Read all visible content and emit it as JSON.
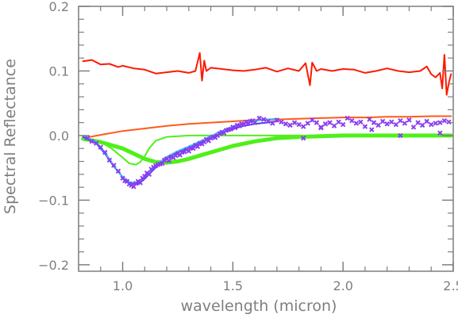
{
  "chart_data": {
    "type": "line",
    "title": "",
    "xlabel": "wavelength (micron)",
    "ylabel": "Spectral Reflectance",
    "xlim": [
      0.8,
      2.5
    ],
    "ylim": [
      -0.21,
      0.2
    ],
    "x_ticks": [
      1.0,
      1.5,
      2.0,
      2.5
    ],
    "x_tick_labels": [
      "1.0",
      "1.5",
      "2.0",
      "2.5"
    ],
    "y_ticks": [
      0.2,
      0.1,
      0.0,
      -0.1,
      -0.2
    ],
    "y_tick_labels": [
      "0.2",
      "0.1",
      "0.0",
      "−0.1",
      "−0.2"
    ],
    "grid": false,
    "legend": "none",
    "colors": {
      "axes": "#7f7f7f",
      "red": "#ff1a00",
      "orange": "#ff5a1a",
      "green": "#4ff01a",
      "cyan": "#36c0f0",
      "blue": "#4a3cf2",
      "purple": "#8a3df0"
    },
    "series": [
      {
        "style": "line",
        "color": "#ff1a00",
        "width": 2,
        "x": [
          0.82,
          0.86,
          0.9,
          0.94,
          0.98,
          1.0,
          1.05,
          1.1,
          1.15,
          1.2,
          1.25,
          1.3,
          1.33,
          1.35,
          1.36,
          1.37,
          1.38,
          1.4,
          1.45,
          1.5,
          1.55,
          1.6,
          1.65,
          1.7,
          1.75,
          1.8,
          1.83,
          1.85,
          1.86,
          1.88,
          1.9,
          1.95,
          2.0,
          2.05,
          2.1,
          2.15,
          2.2,
          2.25,
          2.3,
          2.35,
          2.38,
          2.4,
          2.42,
          2.44,
          2.45,
          2.46,
          2.47,
          2.48,
          2.49
        ],
        "y": [
          0.115,
          0.117,
          0.11,
          0.111,
          0.106,
          0.108,
          0.104,
          0.102,
          0.096,
          0.098,
          0.1,
          0.097,
          0.1,
          0.128,
          0.085,
          0.116,
          0.1,
          0.105,
          0.103,
          0.101,
          0.1,
          0.102,
          0.105,
          0.099,
          0.104,
          0.1,
          0.112,
          0.078,
          0.113,
          0.1,
          0.103,
          0.1,
          0.103,
          0.102,
          0.097,
          0.1,
          0.104,
          0.1,
          0.098,
          0.1,
          0.107,
          0.095,
          0.09,
          0.097,
          0.073,
          0.125,
          0.063,
          0.081,
          0.095
        ]
      },
      {
        "style": "line",
        "color": "#ff5a1a",
        "width": 2,
        "x": [
          0.82,
          0.9,
          1.0,
          1.1,
          1.2,
          1.3,
          1.4,
          1.5,
          1.6,
          1.7,
          1.8,
          1.9,
          2.0,
          2.1,
          2.2,
          2.3,
          2.4,
          2.49
        ],
        "y": [
          -0.004,
          0.001,
          0.007,
          0.011,
          0.015,
          0.018,
          0.02,
          0.022,
          0.024,
          0.025,
          0.026,
          0.027,
          0.028,
          0.028,
          0.029,
          0.029,
          0.03,
          0.03
        ]
      },
      {
        "style": "line",
        "color": "#4ff01a",
        "width": 2,
        "x": [
          0.82,
          0.9,
          0.95,
          1.0,
          1.03,
          1.06,
          1.08,
          1.1,
          1.12,
          1.15,
          1.2,
          1.3,
          1.4,
          1.5,
          1.7,
          2.0,
          2.49
        ],
        "y": [
          -0.003,
          -0.01,
          -0.02,
          -0.034,
          -0.043,
          -0.045,
          -0.041,
          -0.032,
          -0.02,
          -0.008,
          -0.002,
          0.0,
          0.0,
          0.0,
          0.0,
          0.0,
          0.0
        ]
      },
      {
        "style": "line",
        "color": "#4ff01a",
        "width": 5,
        "x": [
          0.82,
          0.9,
          1.0,
          1.05,
          1.1,
          1.15,
          1.2,
          1.25,
          1.3,
          1.35,
          1.4,
          1.5,
          1.6,
          1.7,
          1.8,
          2.0,
          2.2,
          2.49
        ],
        "y": [
          -0.005,
          -0.01,
          -0.02,
          -0.028,
          -0.036,
          -0.041,
          -0.042,
          -0.04,
          -0.036,
          -0.031,
          -0.026,
          -0.016,
          -0.009,
          -0.004,
          -0.002,
          0.0,
          0.0,
          0.0
        ]
      },
      {
        "style": "line",
        "color": "#4a3cf2",
        "width": 2,
        "x": [
          0.82,
          0.88,
          0.92,
          0.96,
          1.0,
          1.03,
          1.06,
          1.09,
          1.12,
          1.15,
          1.2,
          1.25,
          1.3,
          1.35,
          1.4,
          1.45,
          1.5,
          1.55,
          1.6,
          1.65,
          1.7
        ],
        "y": [
          -0.002,
          -0.012,
          -0.028,
          -0.048,
          -0.064,
          -0.073,
          -0.075,
          -0.07,
          -0.06,
          -0.049,
          -0.035,
          -0.026,
          -0.019,
          -0.012,
          -0.004,
          0.004,
          0.01,
          0.015,
          0.018,
          0.02,
          0.022
        ]
      },
      {
        "style": "line",
        "color": "#36c0f0",
        "width": 2,
        "x": [
          0.82,
          0.88,
          0.92,
          0.96,
          1.0,
          1.03,
          1.06,
          1.09,
          1.12,
          1.15,
          1.2,
          1.25,
          1.3,
          1.35,
          1.4,
          1.45,
          1.5,
          1.55,
          1.6,
          1.65,
          1.7
        ],
        "y": [
          0.0,
          -0.01,
          -0.026,
          -0.047,
          -0.064,
          -0.072,
          -0.073,
          -0.067,
          -0.057,
          -0.046,
          -0.033,
          -0.024,
          -0.017,
          -0.009,
          -0.001,
          0.007,
          0.014,
          0.019,
          0.023,
          0.025,
          0.026
        ]
      },
      {
        "style": "scatter",
        "color": "#8a3df0",
        "x": [
          0.84,
          0.86,
          0.88,
          0.9,
          0.92,
          0.94,
          0.96,
          0.98,
          1.0,
          1.01,
          1.02,
          1.03,
          1.04,
          1.05,
          1.06,
          1.07,
          1.08,
          1.09,
          1.1,
          1.11,
          1.12,
          1.13,
          1.14,
          1.15,
          1.16,
          1.17,
          1.18,
          1.19,
          1.2,
          1.21,
          1.22,
          1.23,
          1.24,
          1.25,
          1.26,
          1.27,
          1.28,
          1.29,
          1.3,
          1.31,
          1.32,
          1.33,
          1.34,
          1.35,
          1.36,
          1.37,
          1.38,
          1.39,
          1.4,
          1.41,
          1.42,
          1.43,
          1.44,
          1.45,
          1.46,
          1.47,
          1.48,
          1.49,
          1.5,
          1.51,
          1.52,
          1.53,
          1.54,
          1.55,
          1.56,
          1.57,
          1.58,
          1.59,
          1.6,
          1.62,
          1.64,
          1.66,
          1.68,
          1.7,
          1.72,
          1.74,
          1.76,
          1.78,
          1.8,
          1.82,
          1.84,
          1.86,
          1.88,
          1.9,
          1.92,
          1.94,
          1.96,
          1.98,
          2.0,
          2.02,
          2.04,
          2.06,
          2.08,
          2.1,
          2.12,
          2.14,
          2.16,
          2.18,
          2.2,
          2.22,
          2.24,
          2.26,
          2.28,
          2.3,
          2.32,
          2.34,
          2.36,
          2.38,
          2.4,
          2.42,
          2.44,
          2.46,
          2.48
        ],
        "y": [
          -0.004,
          -0.009,
          -0.012,
          -0.018,
          -0.026,
          -0.038,
          -0.046,
          -0.055,
          -0.066,
          -0.07,
          -0.071,
          -0.075,
          -0.077,
          -0.079,
          -0.074,
          -0.071,
          -0.073,
          -0.066,
          -0.063,
          -0.058,
          -0.06,
          -0.052,
          -0.049,
          -0.047,
          -0.045,
          -0.044,
          -0.043,
          -0.038,
          -0.036,
          -0.039,
          -0.033,
          -0.034,
          -0.031,
          -0.028,
          -0.03,
          -0.026,
          -0.025,
          -0.022,
          -0.024,
          -0.019,
          -0.02,
          -0.015,
          -0.017,
          -0.012,
          -0.013,
          -0.01,
          -0.006,
          -0.008,
          -0.004,
          -0.002,
          -0.003,
          0.0,
          0.003,
          0.005,
          0.004,
          0.008,
          0.009,
          0.01,
          0.013,
          0.012,
          0.016,
          0.015,
          0.018,
          0.017,
          0.021,
          0.019,
          0.022,
          0.023,
          0.02,
          0.027,
          0.025,
          0.022,
          0.019,
          0.024,
          0.021,
          0.018,
          0.016,
          0.02,
          0.017,
          0.014,
          0.019,
          0.024,
          0.02,
          0.013,
          0.018,
          0.02,
          0.015,
          0.021,
          0.017,
          0.027,
          0.023,
          0.019,
          0.021,
          0.014,
          0.025,
          0.02,
          0.016,
          0.022,
          0.018,
          0.021,
          0.017,
          0.023,
          0.019,
          0.024,
          0.013,
          0.02,
          0.016,
          0.022,
          0.017,
          0.019,
          0.02,
          0.023,
          0.021
        ]
      }
    ],
    "outliers": {
      "color": "#8a3df0",
      "x": [
        1.82,
        2.13,
        2.26,
        2.44,
        1.9
      ],
      "y": [
        -0.004,
        0.009,
        0.0,
        0.004,
        0.012
      ]
    }
  }
}
